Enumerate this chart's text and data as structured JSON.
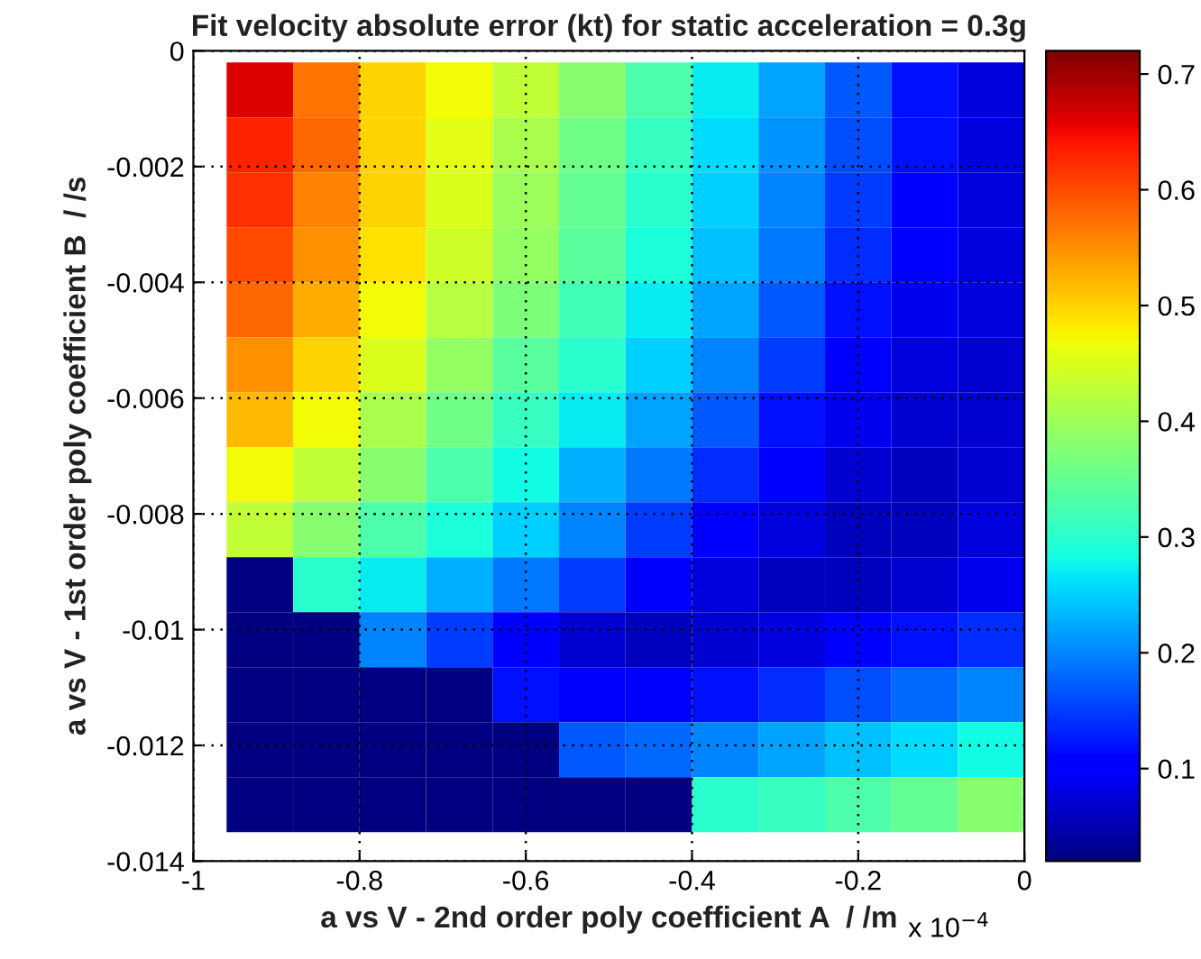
{
  "chart_data": {
    "type": "heatmap",
    "title": "Fit velocity absolute error (kt) for static acceleration = 0.3g",
    "xlabel": "a vs V - 2nd order poly coefficient A  / /m",
    "ylabel": "a vs V - 1st order poly coefficient B  / /s",
    "annotations": [
      "x 10$^{−4}$"
    ],
    "x": [
      -0.92,
      -0.84,
      -0.76,
      -0.68,
      -0.6,
      -0.52,
      -0.44,
      -0.36,
      -0.28,
      -0.2,
      -0.12,
      -0.04
    ],
    "y": [
      -0.000675,
      -0.001625,
      -0.002575,
      -0.003525,
      -0.004475,
      -0.005425,
      -0.006375,
      -0.007325,
      -0.008275,
      -0.009225,
      -0.010175,
      -0.011125,
      -0.012075,
      -0.013025
    ],
    "cells": [
      [
        0.66,
        0.57,
        0.5,
        0.47,
        0.43,
        0.38,
        0.33,
        0.27,
        0.22,
        0.17,
        0.12,
        0.08
      ],
      [
        0.63,
        0.58,
        0.5,
        0.46,
        0.41,
        0.36,
        0.31,
        0.26,
        0.21,
        0.16,
        0.12,
        0.08
      ],
      [
        0.62,
        0.56,
        0.5,
        0.45,
        0.4,
        0.35,
        0.3,
        0.25,
        0.2,
        0.15,
        0.11,
        0.08
      ],
      [
        0.6,
        0.55,
        0.49,
        0.44,
        0.39,
        0.34,
        0.29,
        0.24,
        0.19,
        0.14,
        0.1,
        0.08
      ],
      [
        0.58,
        0.53,
        0.47,
        0.42,
        0.37,
        0.32,
        0.27,
        0.22,
        0.17,
        0.12,
        0.09,
        0.08
      ],
      [
        0.55,
        0.5,
        0.45,
        0.39,
        0.34,
        0.3,
        0.25,
        0.2,
        0.15,
        0.11,
        0.08,
        0.07
      ],
      [
        0.52,
        0.47,
        0.41,
        0.36,
        0.31,
        0.27,
        0.22,
        0.17,
        0.12,
        0.09,
        0.07,
        0.07
      ],
      [
        0.47,
        0.43,
        0.38,
        0.33,
        0.28,
        0.23,
        0.19,
        0.14,
        0.1,
        0.07,
        0.06,
        0.07
      ],
      [
        0.43,
        0.38,
        0.33,
        0.29,
        0.25,
        0.2,
        0.15,
        0.11,
        0.08,
        0.06,
        0.06,
        0.08
      ],
      [
        0.02,
        0.3,
        0.27,
        0.23,
        0.19,
        0.15,
        0.11,
        0.08,
        0.06,
        0.06,
        0.07,
        0.09
      ],
      [
        0.02,
        0.02,
        0.2,
        0.15,
        0.1,
        0.07,
        0.06,
        0.07,
        0.08,
        0.1,
        0.12,
        0.14
      ],
      [
        0.02,
        0.02,
        0.02,
        0.02,
        0.12,
        0.1,
        0.11,
        0.12,
        0.14,
        0.16,
        0.18,
        0.2
      ],
      [
        0.02,
        0.02,
        0.02,
        0.02,
        0.02,
        0.17,
        0.18,
        0.2,
        0.22,
        0.24,
        0.26,
        0.28
      ],
      [
        0.02,
        0.02,
        0.02,
        0.02,
        0.02,
        0.02,
        0.02,
        0.3,
        0.31,
        0.33,
        0.35,
        0.38
      ]
    ],
    "xlim": [
      -1,
      0
    ],
    "xticks": [
      -1,
      -0.8,
      -0.6,
      -0.4,
      -0.2,
      0
    ],
    "ylim": [
      -0.014,
      0
    ],
    "yticks": [
      -0.014,
      -0.012,
      -0.01,
      -0.008,
      -0.006,
      -0.004,
      -0.002,
      0
    ],
    "clim": [
      0.02,
      0.72
    ],
    "cticks": [
      0.1,
      0.2,
      0.3,
      0.4,
      0.5,
      0.6,
      0.7
    ],
    "grid": true
  }
}
